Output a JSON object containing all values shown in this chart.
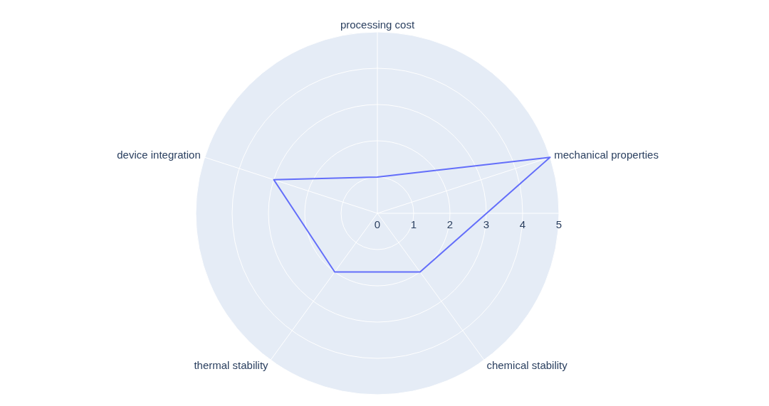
{
  "chart_data": {
    "type": "radar",
    "categories": [
      "processing cost",
      "mechanical properties",
      "chemical stability",
      "thermal stability",
      "device integration"
    ],
    "series": [
      {
        "color": "#636efa",
        "values": [
          1,
          5,
          2,
          2,
          3
        ]
      }
    ],
    "ylim": [
      0,
      5
    ],
    "yticks": [
      0,
      1,
      2,
      3,
      4,
      5
    ],
    "grid": true
  }
}
